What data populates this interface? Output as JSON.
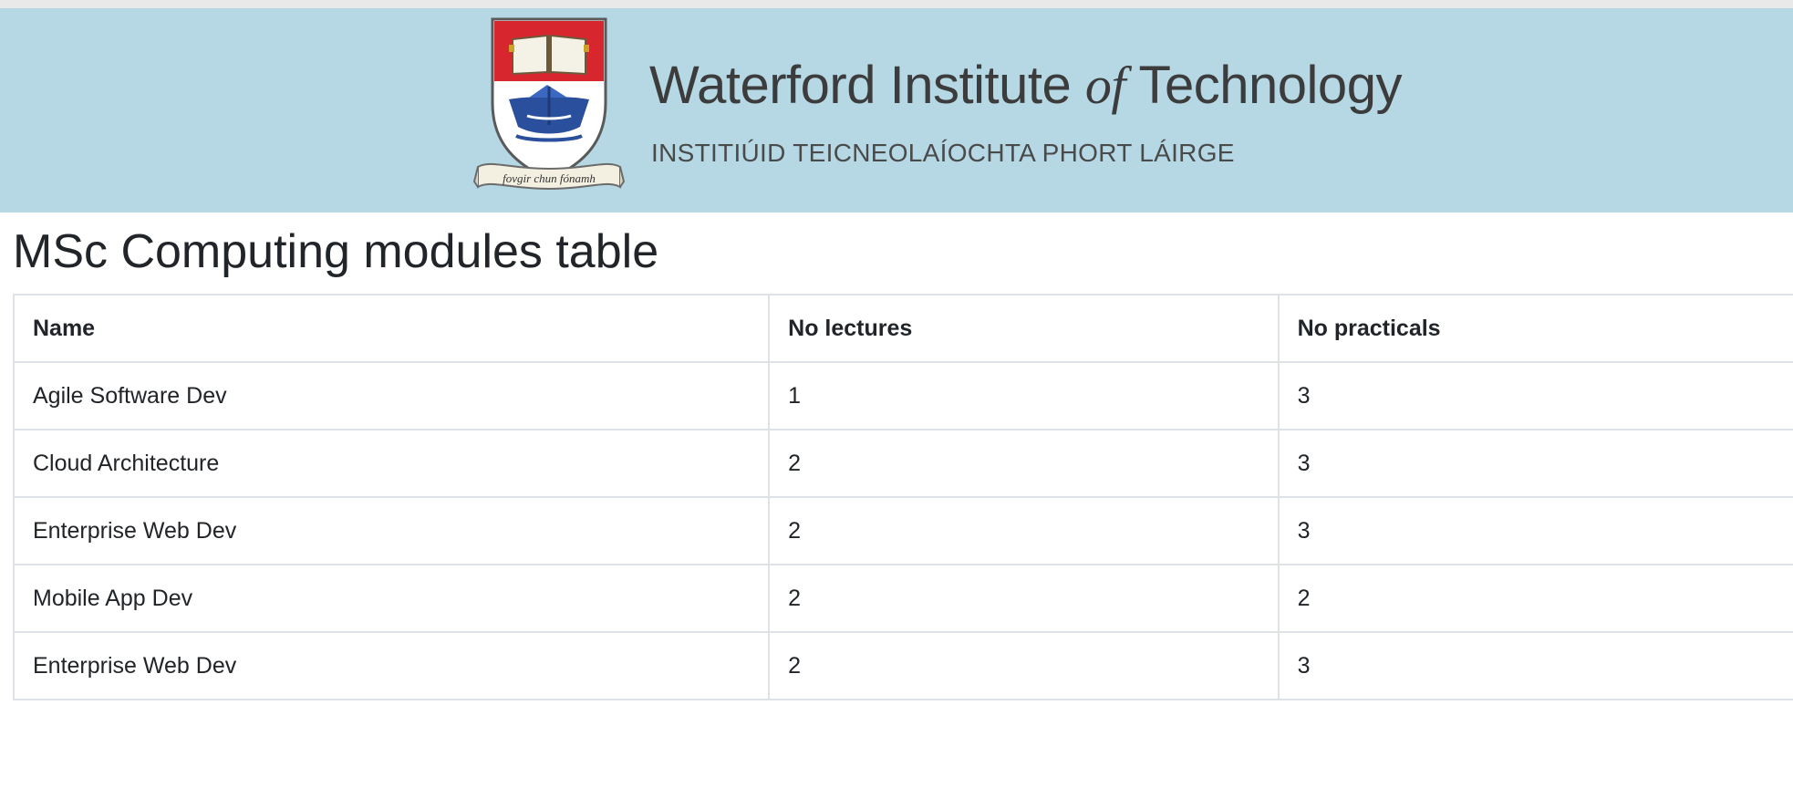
{
  "banner": {
    "institution_name_part1": "Waterford Institute ",
    "institution_name_of": "of",
    "institution_name_part2": " Technology",
    "institution_name_irish": "INSTITIÚID TEICNEOLAÍOCHTA PHORT LÁIRGE",
    "crest_motto": "fovgir chun fónamh",
    "colors": {
      "background": "#b5d8e4",
      "crest_red": "#d8262e",
      "crest_blue": "#2a4f9c",
      "text": "#3c3c3c"
    }
  },
  "page": {
    "title": "MSc Computing modules table"
  },
  "table": {
    "headers": [
      "Name",
      "No lectures",
      "No practicals"
    ],
    "rows": [
      {
        "name": "Agile Software Dev",
        "lectures": "1",
        "practicals": "3"
      },
      {
        "name": "Cloud Architecture",
        "lectures": "2",
        "practicals": "3"
      },
      {
        "name": "Enterprise Web Dev",
        "lectures": "2",
        "practicals": "3"
      },
      {
        "name": "Mobile App Dev",
        "lectures": "2",
        "practicals": "2"
      },
      {
        "name": "Enterprise Web Dev",
        "lectures": "2",
        "practicals": "3"
      }
    ]
  }
}
